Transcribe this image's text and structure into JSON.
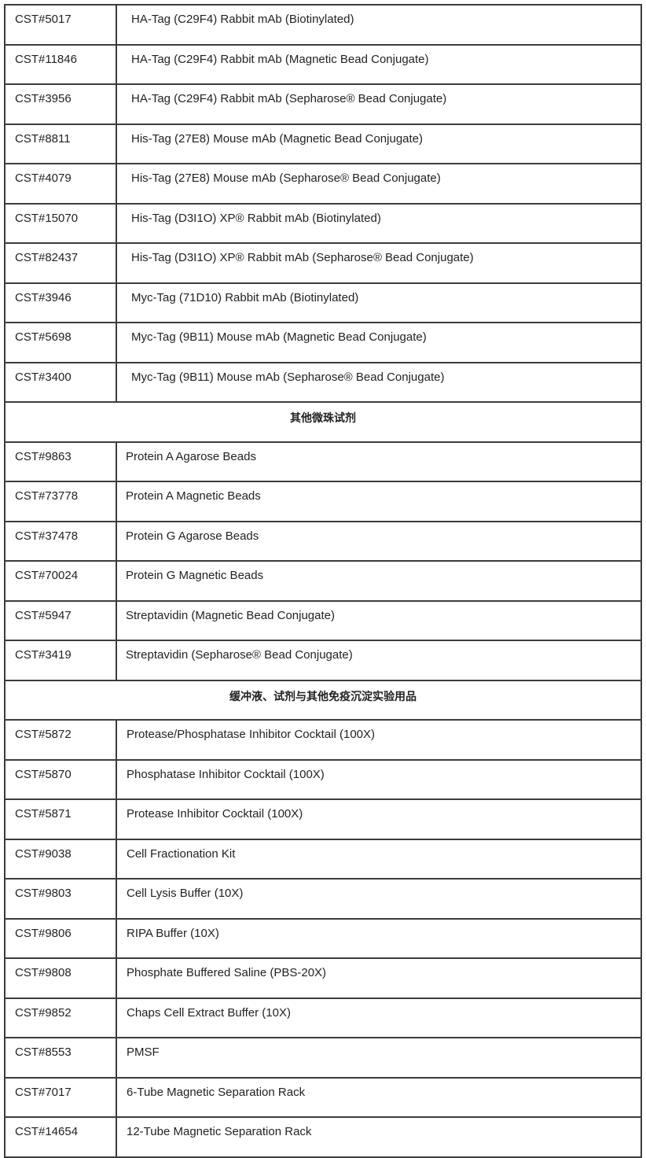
{
  "groups": [
    {
      "heading": "",
      "rows": [
        {
          "cat": "CST#5017",
          "name": "HA-Tag (C29F4) Rabbit mAb (Biotinylated)"
        },
        {
          "cat": "CST#11846",
          "name": "HA-Tag (C29F4) Rabbit mAb (Magnetic Bead Conjugate)"
        },
        {
          "cat": "CST#3956",
          "name": "HA-Tag (C29F4) Rabbit mAb (Sepharose® Bead Conjugate)"
        },
        {
          "cat": "CST#8811",
          "name": "His-Tag (27E8) Mouse mAb (Magnetic Bead Conjugate)"
        },
        {
          "cat": "CST#4079",
          "name": "His-Tag (27E8) Mouse mAb (Sepharose® Bead Conjugate)"
        },
        {
          "cat": "CST#15070",
          "name": "His-Tag (D3I1O) XP® Rabbit mAb (Biotinylated)"
        },
        {
          "cat": "CST#82437",
          "name": "His-Tag (D3I1O) XP® Rabbit mAb (Sepharose® Bead Conjugate)"
        },
        {
          "cat": "CST#3946",
          "name": "Myc-Tag (71D10) Rabbit mAb (Biotinylated)"
        },
        {
          "cat": "CST#5698",
          "name": "Myc-Tag (9B11) Mouse mAb (Magnetic Bead Conjugate)"
        },
        {
          "cat": "CST#3400",
          "name": "Myc-Tag (9B11) Mouse mAb (Sepharose® Bead Conjugate)"
        }
      ]
    },
    {
      "heading": "其他微珠试剂",
      "rows": [
        {
          "cat": "CST#9863",
          "name": "Protein A Agarose Beads"
        },
        {
          "cat": "CST#73778",
          "name": "Protein A Magnetic Beads"
        },
        {
          "cat": "CST#37478",
          "name": "Protein G Agarose Beads"
        },
        {
          "cat": "CST#70024",
          "name": "Protein G Magnetic Beads"
        },
        {
          "cat": "CST#5947",
          "name": "Streptavidin (Magnetic Bead Conjugate)"
        },
        {
          "cat": "CST#3419",
          "name": "Streptavidin (Sepharose® Bead Conjugate)"
        }
      ]
    },
    {
      "heading": "缓冲液、试剂与其他免疫沉淀实验用品",
      "rows": [
        {
          "cat": "CST#5872",
          "name": "Protease/Phosphatase Inhibitor Cocktail (100X)"
        },
        {
          "cat": "CST#5870",
          "name": "Phosphatase Inhibitor Cocktail (100X)"
        },
        {
          "cat": "CST#5871",
          "name": "Protease Inhibitor Cocktail (100X)"
        },
        {
          "cat": "CST#9038",
          "name": "Cell Fractionation Kit"
        },
        {
          "cat": "CST#9803",
          "name": "Cell Lysis Buffer (10X)"
        },
        {
          "cat": "CST#9806",
          "name": "RIPA Buffer (10X)"
        },
        {
          "cat": "CST#9808",
          "name": "Phosphate Buffered Saline (PBS-20X)"
        },
        {
          "cat": "CST#9852",
          "name": "Chaps Cell Extract Buffer (10X)"
        },
        {
          "cat": "CST#8553",
          "name": "PMSF"
        },
        {
          "cat": "CST#7017",
          "name": "6-Tube Magnetic Separation Rack"
        },
        {
          "cat": "CST#14654",
          "name": "12-Tube Magnetic Separation Rack"
        }
      ]
    }
  ]
}
